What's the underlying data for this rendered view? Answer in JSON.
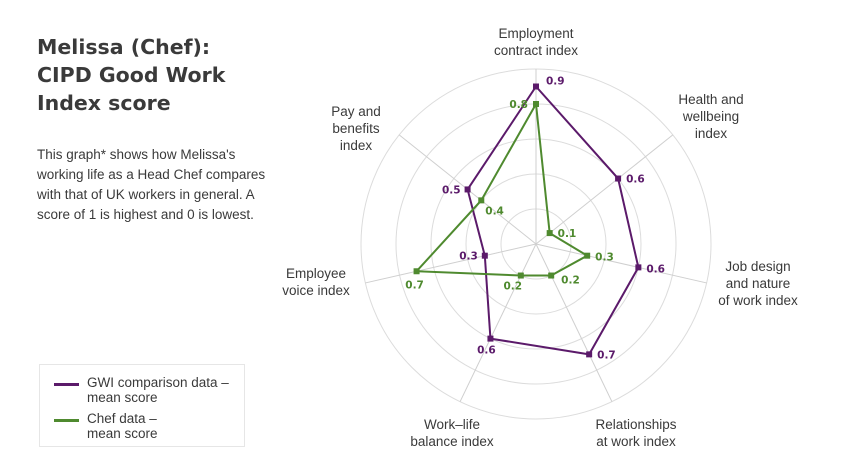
{
  "header": {
    "title_lines": [
      "Melissa (Chef):",
      "CIPD Good Work",
      "Index score"
    ],
    "description": "This graph* shows how Melissa's working life as a Head Chef compares with that of UK workers in general. A score of 1 is highest and 0 is lowest."
  },
  "legend": {
    "items": [
      {
        "label": "GWI comparison data –\nmean score",
        "color": "#5b1a6a"
      },
      {
        "label": "Chef data –\nmean score",
        "color": "#4f8a2f"
      }
    ]
  },
  "chart_data": {
    "type": "radar",
    "title": "Melissa (Chef): CIPD Good Work Index score",
    "range": [
      0,
      1
    ],
    "rings": [
      0.2,
      0.4,
      0.6,
      0.8,
      1.0
    ],
    "grid": true,
    "legend_position": "bottom-left",
    "axes": [
      {
        "label": "Employment\ncontract index"
      },
      {
        "label": "Health and\nwellbeing\nindex"
      },
      {
        "label": "Job design\nand nature\nof work index"
      },
      {
        "label": "Relationships\nat work index"
      },
      {
        "label": "Work–life\nbalance index"
      },
      {
        "label": "Employee\nvoice index"
      },
      {
        "label": "Pay and\nbenefits\nindex"
      }
    ],
    "series": [
      {
        "name": "GWI comparison data – mean score",
        "color": "#5b1a6a",
        "values": [
          0.9,
          0.6,
          0.6,
          0.7,
          0.6,
          0.3,
          0.5
        ],
        "value_labels": [
          "0.9",
          "0.6",
          "0.6",
          "0.7",
          "0.6",
          "0.3",
          "0.5"
        ]
      },
      {
        "name": "Chef data – mean score",
        "color": "#4f8a2f",
        "values": [
          0.8,
          0.1,
          0.3,
          0.2,
          0.2,
          0.7,
          0.4
        ],
        "value_labels": [
          "0.8",
          "0.1",
          "0.3",
          "0.2",
          "0.2",
          "0.7",
          "0.4"
        ]
      }
    ]
  }
}
